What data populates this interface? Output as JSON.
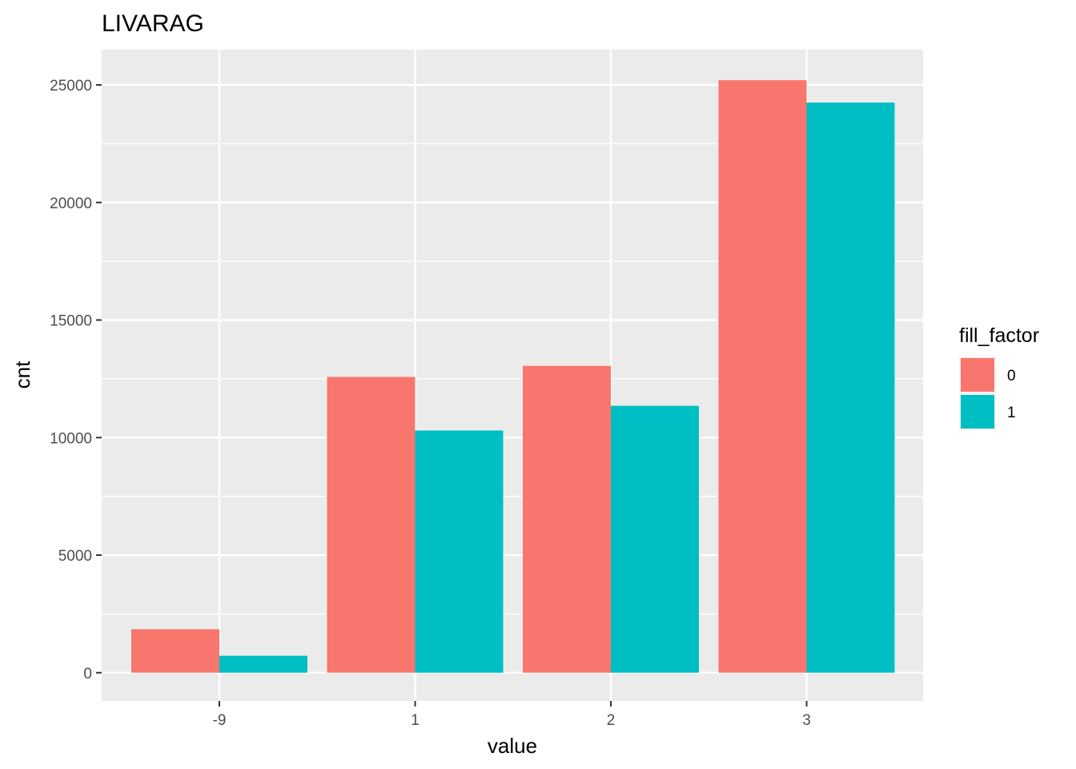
{
  "chart_data": {
    "type": "bar",
    "title": "LIVARAG",
    "xlabel": "value",
    "ylabel": "cnt",
    "categories": [
      "-9",
      "1",
      "2",
      "3"
    ],
    "series": [
      {
        "name": "0",
        "color": "#F8766D",
        "values": [
          1850,
          12580,
          13050,
          25200
        ]
      },
      {
        "name": "1",
        "color": "#00BFC4",
        "values": [
          720,
          10300,
          11350,
          24250
        ]
      }
    ],
    "ylim": [
      -1200,
      26500
    ],
    "yticks": [
      0,
      5000,
      10000,
      15000,
      20000,
      25000
    ],
    "ytick_labels": [
      "0",
      "5000",
      "10000",
      "15000",
      "20000",
      "25000"
    ],
    "grid": true,
    "panel_background": "#EBEBEB",
    "legend": {
      "title": "fill_factor",
      "position": "right",
      "entries": [
        "0",
        "1"
      ]
    }
  }
}
